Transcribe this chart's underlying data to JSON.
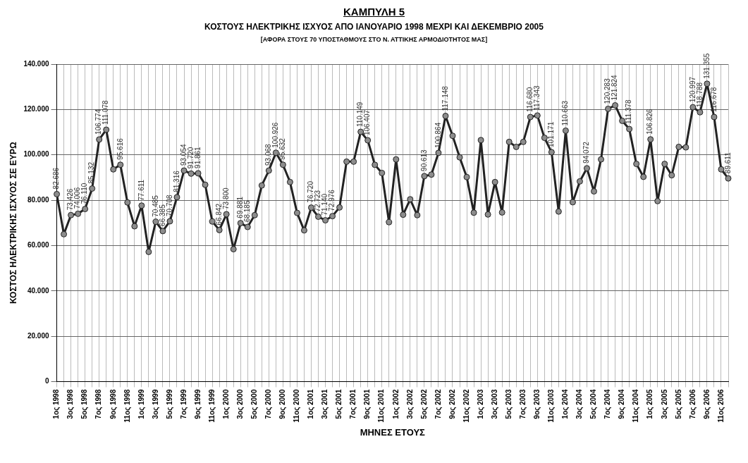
{
  "chart_data": {
    "type": "line",
    "title": "ΚΑΜΠΥΛΗ 5",
    "subtitle": "ΚΟΣΤΟΥΣ ΗΛΕΚΤΡΙΚΗΣ ΙΣΧΥΟΣ ΑΠΟ ΙΑΝΟΥΑΡΙΟ 1998 ΜΕΧΡΙ ΚΑΙ ΔΕΚΕΜΒΡΙΟ 2005",
    "annotations": [
      "[ΑΦΟΡΑ ΣΤΟΥΣ 70 ΥΠΟΣΤΑΘΜΟΥΣ ΣΤΟ Ν. ΑΤΤΙΚΗΣ ΑΡΜΟΔΙΟΤΗΤΟΣ ΜΑΣ]"
    ],
    "xlabel": "ΜΗΝΕΣ ΕΤΟΥΣ",
    "ylabel": "ΚΟΣΤΟΣ ΗΛΕΚΤΡΙΚΗΣ ΙΣΧΥΟΣ ΣΕ ΕΥΡΩ",
    "categories": [
      "1ος 1998",
      null,
      "3ος 1998",
      null,
      "5ος 1998",
      null,
      "7ος 1998",
      null,
      "9ος 1998",
      null,
      "11ος 1998",
      null,
      "1ος 1999",
      null,
      "3ος 1999",
      null,
      "5ος 1999",
      null,
      "7ος 1999",
      null,
      "9ος 1999",
      null,
      "11ος 1999",
      null,
      "1ος 2000",
      null,
      "3ος 2000",
      null,
      "5ος 2000",
      null,
      "7ος 2000",
      null,
      "9ος 2000",
      null,
      "11ος 2000",
      null,
      "1ος 2001",
      null,
      "3ος 2001",
      null,
      "5ος 2001",
      null,
      "7ος 2001",
      null,
      "9ος 2001",
      null,
      "11ος 2001",
      null,
      "1ος 2002",
      null,
      "3ος 2002",
      null,
      "5ος 2002",
      null,
      "7ος 2002",
      null,
      "9ος 2002",
      null,
      "11ος 2002",
      null,
      "1ος 2003",
      null,
      "3ος 2003",
      null,
      "5ος 2003",
      null,
      "7ος 2003",
      null,
      "9ος 2003",
      null,
      "11ος 2003",
      null,
      "1ος 2004",
      null,
      "3ος 2004",
      null,
      "5ος 2004",
      null,
      "7ος 2004",
      null,
      "9ος 2004",
      null,
      "11ος 2004",
      null,
      "1ος 2005",
      null,
      "3ος 2005",
      null,
      "5ος 2005",
      null,
      "7ος 2006",
      null,
      "9ος 2006",
      null,
      "11ος 2006",
      null
    ],
    "series": [
      {
        "color": "#222222",
        "values": [
          82686,
          65000,
          73426,
          74006,
          76110,
          85132,
          106774,
          111078,
          93600,
          95616,
          79000,
          68500,
          77611,
          57200,
          70485,
          66385,
          70708,
          81316,
          93054,
          91720,
          91861,
          86800,
          70600,
          66842,
          73800,
          58400,
          69881,
          68185,
          73400,
          86500,
          93068,
          100926,
          95632,
          88000,
          74400,
          66700,
          76720,
          72723,
          71140,
          72976,
          76800,
          97000,
          97000,
          110149,
          106407,
          95600,
          92000,
          70300,
          98000,
          73600,
          80400,
          73400,
          90613,
          91300,
          100864,
          117148,
          108400,
          98900,
          90200,
          74500,
          106500,
          73700,
          88000,
          74600,
          105700,
          103500,
          105700,
          116680,
          117343,
          107500,
          101171,
          75000,
          110663,
          79100,
          88300,
          94072,
          83900,
          98000,
          120283,
          121824,
          115000,
          111378,
          96000,
          90300,
          106826,
          79600,
          96000,
          91000,
          103500,
          103300,
          120997,
          118788,
          131355,
          116678,
          93600,
          89611
        ],
        "value_labels": [
          "82.686",
          null,
          "73.426",
          "74.006",
          "76.110",
          "85.132",
          "106.774",
          "111.078",
          null,
          "95.616",
          null,
          null,
          "77.611",
          null,
          "70.485",
          "66.385",
          "70.708",
          "81.316",
          "93.054",
          "91.720",
          "91.861",
          null,
          null,
          "66.842",
          "73.800",
          null,
          "69.881",
          "68.185",
          null,
          null,
          "93.068",
          "100.926",
          "95.632",
          null,
          null,
          null,
          "76.720",
          "72.723",
          "71.140",
          "72.976",
          null,
          null,
          null,
          "110.149",
          "106.407",
          null,
          null,
          null,
          null,
          null,
          null,
          null,
          "90.613",
          null,
          "100.864",
          "117.148",
          null,
          null,
          null,
          null,
          null,
          null,
          null,
          null,
          null,
          null,
          null,
          "116.680",
          "117.343",
          null,
          "101.171",
          null,
          "110.663",
          null,
          null,
          "94.072",
          null,
          null,
          "120.283",
          "121.824",
          null,
          "111.378",
          null,
          null,
          "106.826",
          null,
          null,
          null,
          null,
          null,
          "120.997",
          "118.788",
          "131.355",
          "116.678",
          null,
          "89.611"
        ]
      }
    ],
    "ylim": [
      0,
      140000
    ],
    "yticks": [
      0,
      {
        "value": 20000,
        "label": "20.000"
      },
      {
        "value": 40000,
        "label": "40.000"
      },
      {
        "value": 60000,
        "label": "60.000"
      },
      {
        "value": 80000,
        "label": "80.000"
      },
      {
        "value": 100000,
        "label": "100.000"
      },
      {
        "value": 120000,
        "label": "120.000"
      },
      {
        "value": 140000,
        "label": "140.000"
      }
    ],
    "grid": true,
    "legend": false,
    "marker": "circle",
    "line_style": "solid"
  }
}
